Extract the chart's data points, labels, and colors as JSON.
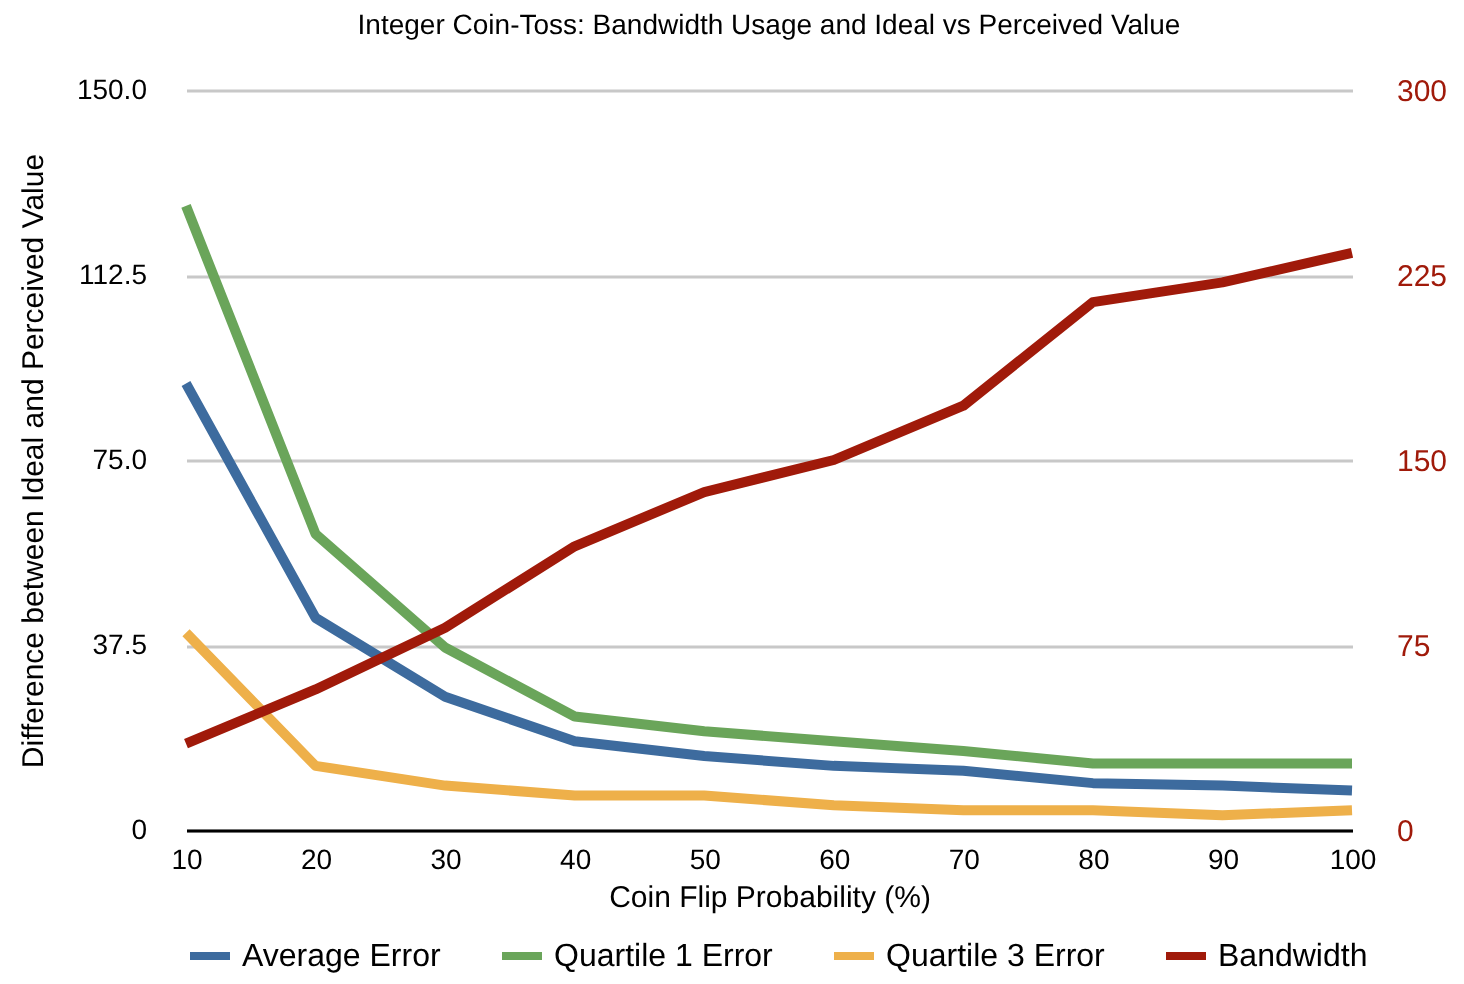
{
  "chart_data": {
    "type": "line",
    "title": "Integer Coin-Toss: Bandwidth Usage and Ideal vs Perceived Value",
    "xlabel": "Coin Flip Probability (%)",
    "ylabel": "Difference between Ideal and Perceived Value",
    "categories": [
      "10",
      "20",
      "30",
      "40",
      "50",
      "60",
      "70",
      "80",
      "90",
      "100"
    ],
    "series": [
      {
        "name": "Average Error",
        "color": "#3d6b9e",
        "values": [
          90.5,
          43,
          27,
          18,
          15,
          13,
          12,
          9.5,
          9,
          8
        ]
      },
      {
        "name": "Quartile 1 Error",
        "color": "#6aa55a",
        "values": [
          126.5,
          60,
          37,
          23,
          20,
          18,
          16,
          13.5,
          13.5,
          13.5
        ]
      },
      {
        "name": "Quartile 3 Error",
        "color": "#eeb04a",
        "values": [
          40,
          13,
          9,
          7,
          7,
          5,
          4,
          4,
          3,
          4
        ]
      },
      {
        "name": "Bandwidth",
        "color": "#a01a0a",
        "axis": "y2",
        "values": [
          35,
          57,
          82,
          115,
          137,
          150,
          172,
          214,
          222,
          234
        ]
      }
    ],
    "ylim": [
      0,
      150
    ],
    "yticks": [
      0,
      {
        "value": 37.5,
        "label": "37.5"
      },
      {
        "value": 75,
        "label": "75.0"
      },
      {
        "value": 112.5,
        "label": "112.5"
      },
      {
        "value": 150,
        "label": "150.0"
      }
    ],
    "y2lim": [
      0,
      300
    ],
    "y2ticks": [
      0,
      75,
      150,
      225,
      300
    ],
    "grid": "y",
    "legend": "bottom",
    "line_style": "solid"
  }
}
